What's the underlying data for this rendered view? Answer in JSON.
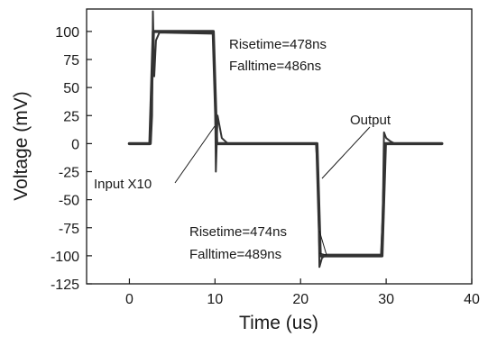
{
  "chart_data": {
    "type": "line",
    "title": "",
    "xlabel": "Time (us)",
    "ylabel": "Voltage (mV)",
    "xlim": [
      -5,
      40
    ],
    "ylim": [
      -125,
      120
    ],
    "x_ticks": [
      0,
      10,
      20,
      30,
      40
    ],
    "y_ticks": [
      100,
      75,
      50,
      25,
      0,
      -25,
      -50,
      -75,
      -100,
      -125
    ],
    "grid": false,
    "series": [
      {
        "name": "Input X10",
        "color": "#333333",
        "points": [
          [
            0,
            0
          ],
          [
            2.4,
            0
          ],
          [
            2.8,
            100
          ],
          [
            9.8,
            100
          ],
          [
            10.2,
            0
          ],
          [
            21.9,
            0
          ],
          [
            22.3,
            -100
          ],
          [
            29.5,
            -100
          ],
          [
            29.9,
            0
          ],
          [
            36.5,
            0
          ]
        ]
      },
      {
        "name": "Output",
        "color": "#333333",
        "points": [
          [
            0,
            0
          ],
          [
            2.5,
            0
          ],
          [
            2.65,
            25
          ],
          [
            2.75,
            118
          ],
          [
            2.9,
            60
          ],
          [
            3.1,
            92
          ],
          [
            3.5,
            99
          ],
          [
            9.8,
            98
          ],
          [
            10.0,
            55
          ],
          [
            10.1,
            -25
          ],
          [
            10.3,
            25
          ],
          [
            10.8,
            5
          ],
          [
            11.5,
            0
          ],
          [
            21.8,
            0
          ],
          [
            22.05,
            -30
          ],
          [
            22.2,
            -110
          ],
          [
            22.5,
            -102
          ],
          [
            23.0,
            -99
          ],
          [
            29.4,
            -99
          ],
          [
            29.6,
            -65
          ],
          [
            29.75,
            10
          ],
          [
            30.0,
            5
          ],
          [
            30.5,
            2
          ],
          [
            31.0,
            0
          ],
          [
            36.5,
            0
          ]
        ]
      }
    ],
    "annotations": [
      {
        "text": "Risetime=478ns"
      },
      {
        "text": "Falltime=486ns"
      },
      {
        "text": "Output"
      },
      {
        "text": "Input X10"
      },
      {
        "text": "Risetime=474ns"
      },
      {
        "text": "Falltime=489ns"
      }
    ]
  }
}
